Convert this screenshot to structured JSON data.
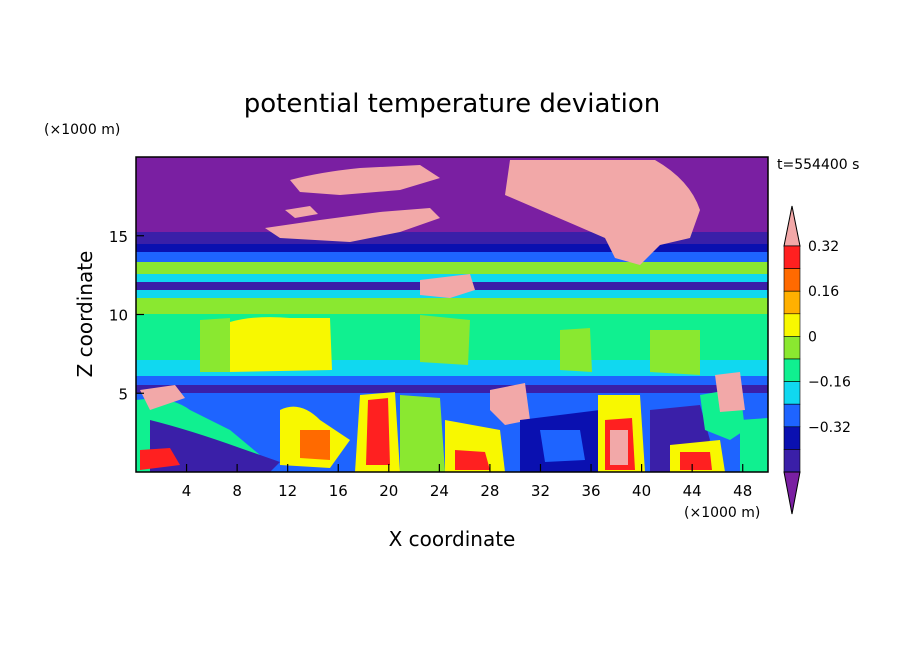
{
  "chart_data": {
    "type": "heatmap",
    "title": "potential temperature deviation",
    "xlabel": "X coordinate",
    "ylabel": "Z coordinate",
    "x_unit": "(×1000 m)",
    "y_unit": "(×1000 m)",
    "time_label": "t=554400 s",
    "xlim": [
      0,
      50
    ],
    "ylim": [
      0,
      20
    ],
    "x_ticks": [
      4,
      8,
      12,
      16,
      20,
      24,
      28,
      32,
      36,
      40,
      44,
      48
    ],
    "y_ticks": [
      5,
      10,
      15
    ],
    "colorbar": {
      "levels": [
        -0.4,
        -0.32,
        -0.24,
        -0.16,
        -0.08,
        0,
        0.08,
        0.16,
        0.24,
        0.32,
        0.4
      ],
      "labels": [
        "0.32",
        "0.16",
        "0",
        "−0.16",
        "−0.32"
      ],
      "label_values": [
        0.32,
        0.16,
        0,
        -0.16,
        -0.32
      ],
      "colors": [
        "#7a1fa2",
        "#3a1fa8",
        "#0a10b0",
        "#1e64ff",
        "#10d8f0",
        "#10f090",
        "#8ae830",
        "#f8f800",
        "#ffb000",
        "#ff6a00",
        "#ff2020",
        "#f2a8a8"
      ],
      "extend": "both"
    }
  },
  "colors": {
    "purple": "#7a1fa2",
    "indigo": "#3a1fa8",
    "navy": "#0a10b0",
    "blue": "#1e64ff",
    "cyan": "#10d8f0",
    "green": "#10f090",
    "lime": "#8ae830",
    "yellow": "#f8f800",
    "orange": "#ffb000",
    "darkorange": "#ff6a00",
    "red": "#ff2020",
    "pink": "#f2a8a8"
  }
}
